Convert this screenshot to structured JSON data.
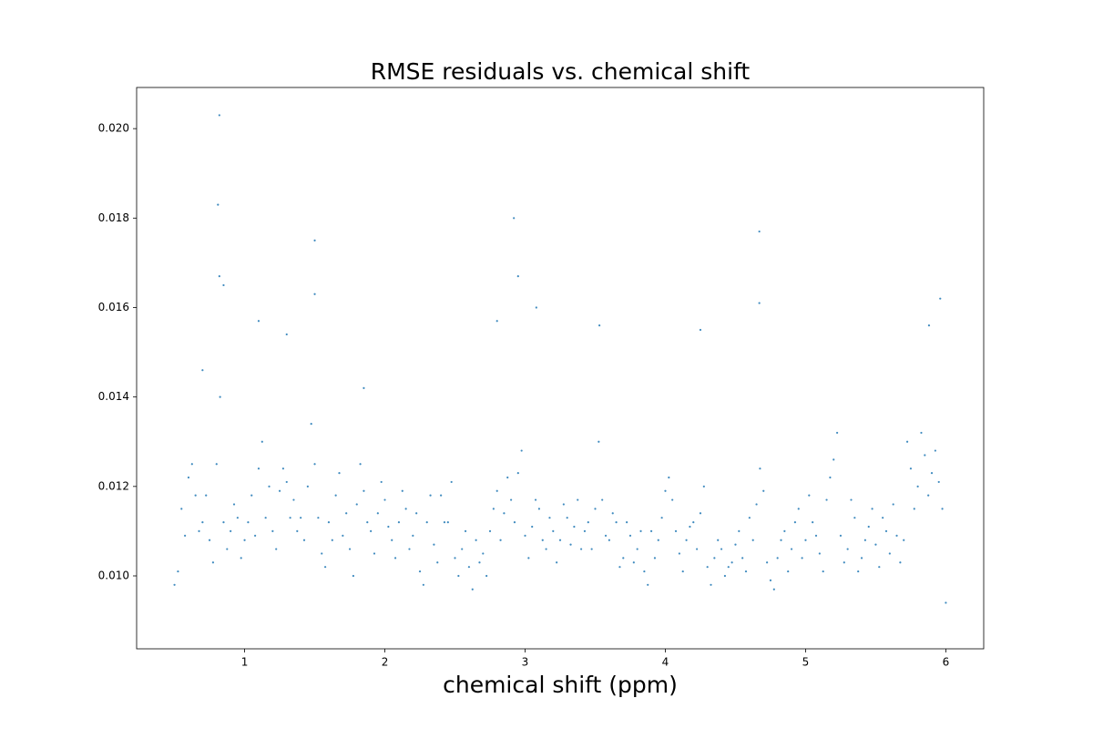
{
  "chart_data": {
    "type": "scatter",
    "title": "RMSE residuals vs. chemical shift",
    "x_label": "chemical shift (ppm)",
    "color": "#1f77b4",
    "xlim": [
      0.23,
      6.27
    ],
    "ylim": [
      0.00837,
      0.02092
    ],
    "xticks": [
      1,
      2,
      3,
      4,
      5,
      6
    ],
    "yticks": [
      {
        "value": 0.01,
        "label": "0.010"
      },
      0.012,
      0.014,
      0.016,
      0.018,
      {
        "value": 0.02,
        "label": "0.020"
      }
    ],
    "x": [
      0.5,
      0.55,
      0.6,
      0.65,
      0.7,
      0.75,
      0.8,
      0.85,
      0.9,
      0.95,
      1.0,
      1.05,
      1.1,
      1.15,
      1.2,
      1.25,
      1.3,
      1.35,
      1.4,
      1.45,
      1.5,
      1.55,
      1.6,
      1.65,
      1.7,
      1.75,
      1.8,
      1.85,
      1.9,
      1.95,
      2.0,
      2.05,
      2.1,
      2.15,
      2.2,
      2.25,
      2.3,
      2.35,
      2.4,
      2.45,
      2.5,
      2.55,
      2.6,
      2.65,
      2.7,
      2.75,
      2.8,
      2.85,
      2.9,
      2.95,
      3.0,
      3.05,
      3.1,
      3.15,
      3.2,
      3.25,
      3.3,
      3.35,
      3.4,
      3.45,
      3.5,
      3.55,
      3.6,
      3.65,
      3.7,
      3.75,
      3.8,
      3.85,
      3.9,
      3.95,
      4.0,
      4.05,
      4.1,
      4.15,
      4.2,
      4.25,
      4.3,
      4.35,
      4.4,
      4.45,
      4.5,
      4.55,
      4.6,
      4.65,
      4.7,
      4.75,
      4.8,
      4.85,
      4.9,
      4.95,
      5.0,
      5.05,
      5.1,
      5.15,
      5.2,
      5.25,
      5.3,
      5.35,
      5.4,
      5.45,
      5.5,
      5.55,
      5.6,
      5.65,
      5.7,
      5.75,
      5.8,
      5.85,
      5.9,
      5.95,
      6.0,
      0.525,
      0.575,
      0.625,
      0.675,
      0.725,
      0.775,
      0.825,
      0.875,
      0.925,
      0.975,
      1.025,
      1.075,
      1.125,
      1.175,
      1.225,
      1.275,
      1.325,
      1.375,
      1.425,
      1.475,
      1.525,
      1.575,
      1.625,
      1.675,
      1.725,
      1.775,
      1.825,
      1.875,
      1.925,
      1.975,
      2.025,
      2.075,
      2.125,
      2.175,
      2.225,
      2.275,
      2.325,
      2.375,
      2.425,
      2.475,
      2.525,
      2.575,
      2.625,
      2.675,
      2.725,
      2.775,
      2.825,
      2.875,
      2.925,
      2.975,
      3.025,
      3.075,
      3.125,
      3.175,
      3.225,
      3.275,
      3.325,
      3.375,
      3.425,
      3.475,
      3.525,
      3.575,
      3.625,
      3.675,
      3.725,
      3.775,
      3.825,
      3.875,
      3.925,
      3.975,
      4.025,
      4.075,
      4.125,
      4.175,
      4.225,
      4.275,
      4.325,
      4.375,
      4.425,
      4.475,
      4.525,
      4.575,
      4.625,
      4.675,
      4.725,
      4.775,
      4.825,
      4.875,
      4.925,
      4.975,
      5.025,
      5.075,
      5.125,
      5.175,
      5.225,
      5.275,
      5.325,
      5.375,
      5.425,
      5.475,
      5.525,
      5.575,
      5.625,
      5.675,
      5.725,
      5.775,
      5.825,
      5.875,
      5.925,
      5.975,
      0.82,
      0.81,
      0.82,
      0.85,
      1.1,
      1.5,
      1.5,
      1.3,
      2.92,
      2.95,
      3.08,
      4.67,
      4.67,
      5.96,
      5.88,
      4.25,
      2.8,
      3.53,
      0.7,
      1.85
    ],
    "values": [
      0.0098,
      0.0115,
      0.0122,
      0.0118,
      0.0112,
      0.0108,
      0.0125,
      0.0112,
      0.011,
      0.0113,
      0.0108,
      0.0118,
      0.0124,
      0.0113,
      0.011,
      0.0119,
      0.0121,
      0.0117,
      0.0113,
      0.012,
      0.0125,
      0.0105,
      0.0112,
      0.0118,
      0.0109,
      0.0106,
      0.0116,
      0.0119,
      0.011,
      0.0114,
      0.0117,
      0.0108,
      0.0112,
      0.0115,
      0.0109,
      0.0101,
      0.0112,
      0.0107,
      0.0118,
      0.0112,
      0.0104,
      0.0106,
      0.0102,
      0.0108,
      0.0105,
      0.011,
      0.0119,
      0.0114,
      0.0117,
      0.0123,
      0.0109,
      0.0111,
      0.0115,
      0.0106,
      0.011,
      0.0108,
      0.0113,
      0.0111,
      0.0106,
      0.0112,
      0.0115,
      0.0117,
      0.0108,
      0.0112,
      0.0104,
      0.0109,
      0.0106,
      0.0101,
      0.011,
      0.0108,
      0.0119,
      0.0117,
      0.0105,
      0.0108,
      0.0112,
      0.0114,
      0.0102,
      0.0104,
      0.0106,
      0.0102,
      0.0107,
      0.0104,
      0.0113,
      0.0116,
      0.0119,
      0.0099,
      0.0104,
      0.011,
      0.0106,
      0.0115,
      0.0108,
      0.0112,
      0.0105,
      0.0117,
      0.0126,
      0.0109,
      0.0106,
      0.0113,
      0.0104,
      0.0111,
      0.0107,
      0.0113,
      0.0105,
      0.0109,
      0.0108,
      0.0124,
      0.012,
      0.0127,
      0.0123,
      0.0121,
      0.0094,
      0.0101,
      0.0109,
      0.0125,
      0.011,
      0.0118,
      0.0103,
      0.014,
      0.0106,
      0.0116,
      0.0104,
      0.0112,
      0.0109,
      0.013,
      0.012,
      0.0106,
      0.0124,
      0.0113,
      0.011,
      0.0108,
      0.0134,
      0.0113,
      0.0102,
      0.0108,
      0.0123,
      0.0114,
      0.01,
      0.0125,
      0.0112,
      0.0105,
      0.0121,
      0.0111,
      0.0104,
      0.0119,
      0.0106,
      0.0114,
      0.0098,
      0.0118,
      0.0103,
      0.0112,
      0.0121,
      0.01,
      0.011,
      0.0097,
      0.0103,
      0.01,
      0.0115,
      0.0108,
      0.0122,
      0.0112,
      0.0128,
      0.0104,
      0.0117,
      0.0108,
      0.0113,
      0.0103,
      0.0116,
      0.0107,
      0.0117,
      0.011,
      0.0106,
      0.013,
      0.0109,
      0.0114,
      0.0102,
      0.0112,
      0.0103,
      0.011,
      0.0098,
      0.0104,
      0.0113,
      0.0122,
      0.011,
      0.0101,
      0.0111,
      0.0106,
      0.012,
      0.0098,
      0.0108,
      0.01,
      0.0103,
      0.011,
      0.0101,
      0.0108,
      0.0124,
      0.0103,
      0.0097,
      0.0108,
      0.0101,
      0.0112,
      0.0104,
      0.0118,
      0.0109,
      0.0101,
      0.0122,
      0.0132,
      0.0103,
      0.0117,
      0.0101,
      0.0108,
      0.0115,
      0.0102,
      0.011,
      0.0116,
      0.0103,
      0.013,
      0.0115,
      0.0132,
      0.0118,
      0.0128,
      0.0115,
      0.0203,
      0.0183,
      0.0167,
      0.0165,
      0.0157,
      0.0175,
      0.0163,
      0.0154,
      0.018,
      0.0167,
      0.016,
      0.0177,
      0.0161,
      0.0162,
      0.0156,
      0.0155,
      0.0157,
      0.0156,
      0.0146,
      0.0142
    ]
  }
}
